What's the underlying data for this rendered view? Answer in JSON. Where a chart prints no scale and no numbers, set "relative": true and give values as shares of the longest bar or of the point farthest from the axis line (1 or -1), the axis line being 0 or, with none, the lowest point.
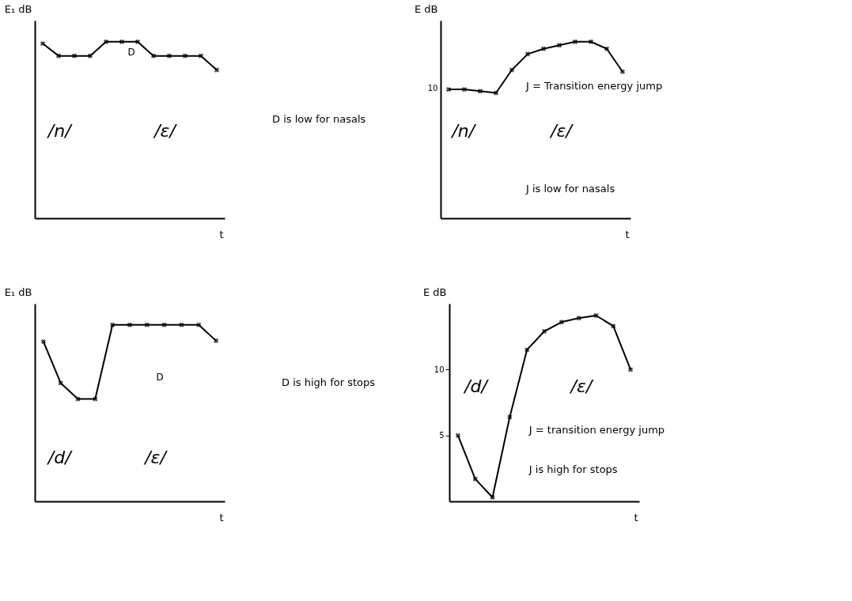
{
  "chart_data": [
    {
      "type": "line",
      "xlabel": "t",
      "ylabel": "E₁ dB",
      "relative": true,
      "tick_labels": false,
      "marker": "cross",
      "line_style": "solid",
      "color": "#000000",
      "categories": [
        null,
        null,
        null,
        null,
        null,
        null,
        null,
        null,
        null,
        null,
        null,
        null
      ],
      "values": [
        0.99,
        0.92,
        0.92,
        0.92,
        1,
        1,
        1,
        0.92,
        0.92,
        0.92,
        0.92,
        0.84
      ],
      "annotations": [
        "D",
        "/n/",
        "/ε/",
        "D is low for nasals"
      ]
    },
    {
      "type": "line",
      "xlabel": "t",
      "ylabel": "E dB",
      "relative": true,
      "tick_labels": false,
      "marker": "cross",
      "line_style": "solid",
      "color": "#000000",
      "categories": [
        null,
        null,
        null,
        null,
        null,
        null,
        null,
        null,
        null,
        null,
        null,
        null
      ],
      "values": [
        0.73,
        0.73,
        0.72,
        0.71,
        0.84,
        0.93,
        0.96,
        0.98,
        1,
        1,
        0.96,
        0.83
      ],
      "annotations": [
        "J = Transition energy jump",
        "/n/",
        "/ε/",
        "J is low for nasals",
        "10"
      ]
    },
    {
      "type": "line",
      "xlabel": "t",
      "ylabel": "E₁ dB",
      "relative": true,
      "tick_labels": false,
      "marker": "cross",
      "line_style": "solid",
      "color": "#000000",
      "categories": [
        null,
        null,
        null,
        null,
        null,
        null,
        null,
        null,
        null,
        null,
        null
      ],
      "values": [
        0.905,
        0.67,
        0.58,
        0.58,
        1,
        1,
        1,
        1,
        1,
        1,
        0.91
      ],
      "annotations": [
        "D",
        "/d/",
        "/ε/",
        "D is high for stops"
      ]
    },
    {
      "type": "line",
      "xlabel": "t",
      "ylabel": "E dB",
      "tick_labels": "y",
      "marker": "cross",
      "line_style": "solid",
      "color": "#000000",
      "ylim": [
        0,
        15
      ],
      "yticks": [
        5,
        10
      ],
      "categories": [
        null,
        null,
        null,
        null,
        null,
        null,
        null,
        null,
        null,
        null,
        null
      ],
      "values": [
        5,
        1.7,
        0.3,
        6.4,
        11.5,
        12.9,
        13.6,
        13.9,
        14.1,
        13.3,
        10
      ],
      "annotations": [
        "/d/",
        "/ε/",
        "J = transition energy jump",
        "J is high for stops"
      ]
    }
  ]
}
